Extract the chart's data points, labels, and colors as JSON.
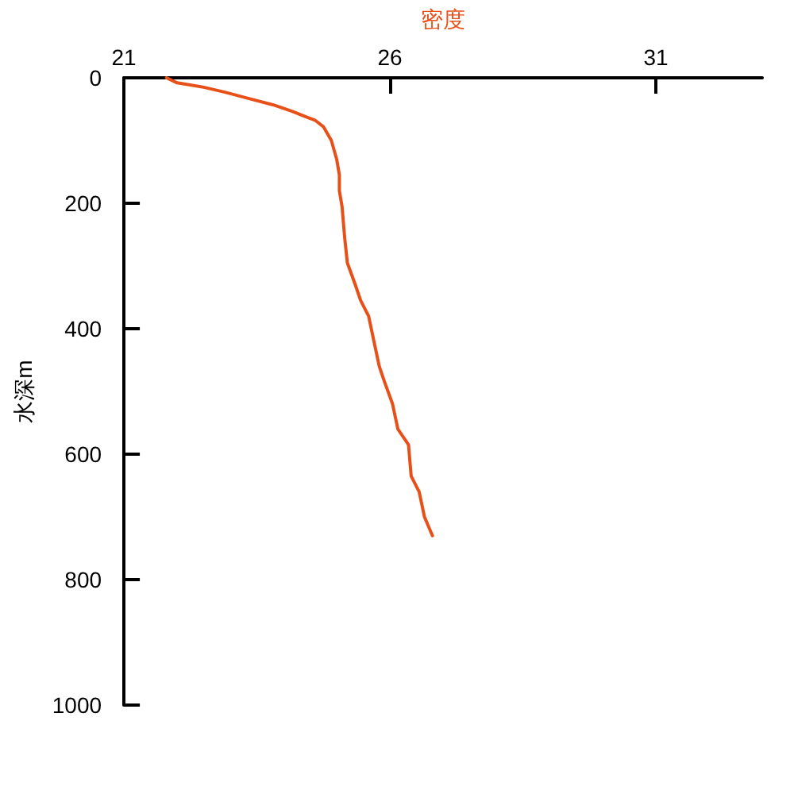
{
  "chart_data": {
    "type": "line",
    "xlabel": "密度",
    "ylabel": "水深m",
    "xlim": [
      21,
      33
    ],
    "xticks": [
      21,
      26,
      31
    ],
    "ylim": [
      1000,
      0
    ],
    "yticks": [
      0,
      200,
      400,
      600,
      800,
      1000
    ],
    "grid": false,
    "marker": "none",
    "line_style": "solid",
    "series": [
      {
        "color": "#e8501a",
        "x": [
          21.8,
          22.0,
          22.5,
          22.9,
          23.35,
          23.8,
          24.15,
          24.45,
          24.6,
          24.75,
          24.9,
          25.0,
          25.05,
          25.05,
          25.1,
          25.15,
          25.2,
          25.35,
          25.45,
          25.6,
          25.7,
          25.8,
          25.9,
          26.05,
          26.15,
          26.35,
          26.4,
          26.55,
          26.65,
          26.8
        ],
        "values": [
          0,
          8,
          15,
          23,
          33,
          43,
          53,
          63,
          68,
          78,
          100,
          130,
          155,
          180,
          205,
          255,
          295,
          330,
          355,
          380,
          420,
          460,
          485,
          520,
          560,
          585,
          635,
          660,
          700,
          730
        ]
      }
    ]
  }
}
